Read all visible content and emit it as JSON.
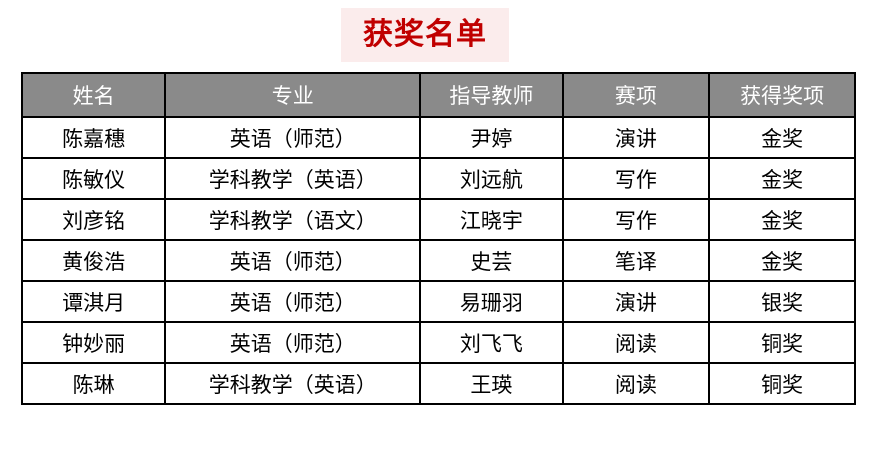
{
  "title": {
    "text": "获奖名单"
  },
  "colors": {
    "title_color": "#c00000",
    "title_bg": "#fbecec",
    "header_bg": "#8a8a8a",
    "header_text": "#ffffff",
    "border": "#000000"
  },
  "table": {
    "columns": [
      "姓名",
      "专业",
      "指导教师",
      "赛项",
      "获得奖项"
    ],
    "rows": [
      [
        "陈嘉穗",
        "英语（师范）",
        "尹婷",
        "演讲",
        "金奖"
      ],
      [
        "陈敏仪",
        "学科教学（英语）",
        "刘远航",
        "写作",
        "金奖"
      ],
      [
        "刘彦铭",
        "学科教学（语文）",
        "江晓宇",
        "写作",
        "金奖"
      ],
      [
        "黄俊浩",
        "英语（师范）",
        "史芸",
        "笔译",
        "金奖"
      ],
      [
        "谭淇月",
        "英语（师范）",
        "易珊羽",
        "演讲",
        "银奖"
      ],
      [
        "钟妙丽",
        "英语（师范）",
        "刘飞飞",
        "阅读",
        "铜奖"
      ],
      [
        "陈琳",
        "学科教学（英语）",
        "王瑛",
        "阅读",
        "铜奖"
      ]
    ]
  }
}
